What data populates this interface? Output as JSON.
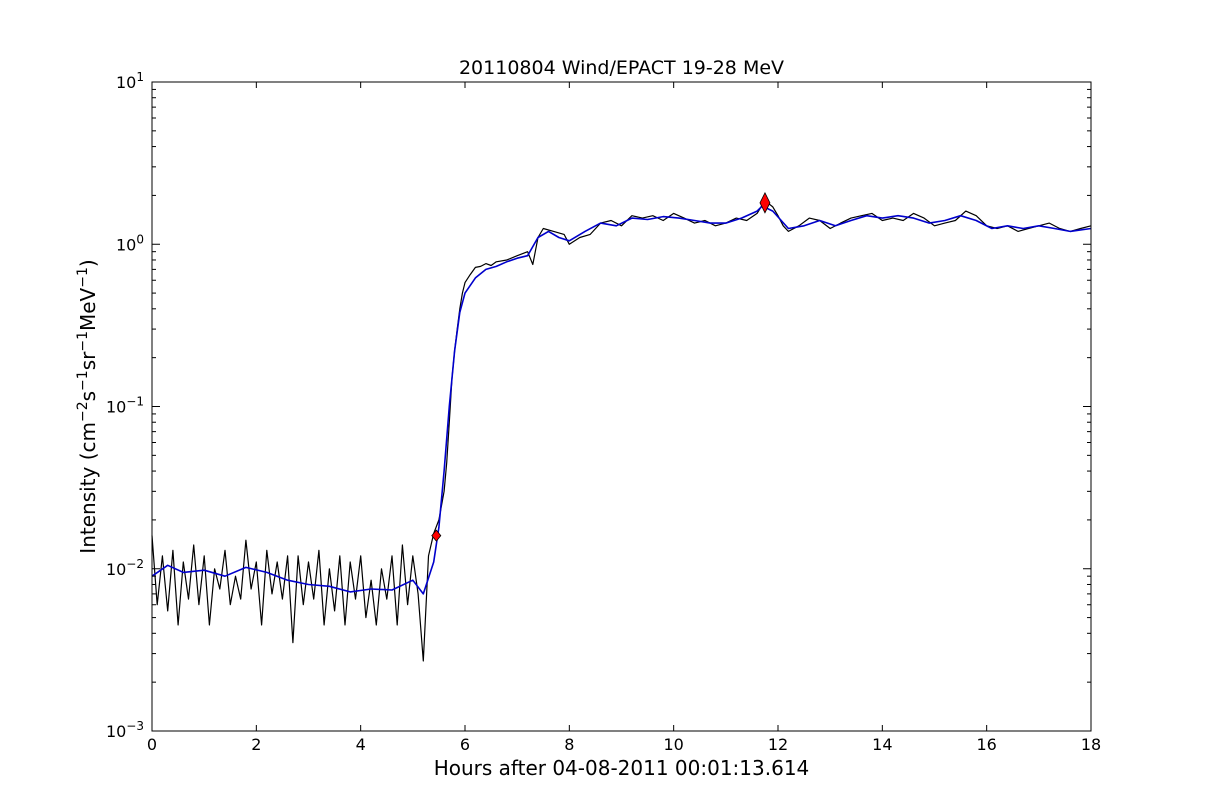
{
  "chart_data": {
    "type": "line",
    "title": "20110804 Wind/EPACT 19-28 MeV",
    "xlabel": "Hours after 04-08-2011 00:01:13.614",
    "ylabel": {
      "prefix": "Intensity (cm",
      "sup1": "−2",
      "mid1": "s",
      "sup2": "−1",
      "mid2": "sr",
      "sup3": "−1",
      "mid3": "MeV",
      "sup4": "−1",
      "suffix": ")"
    },
    "xlim": [
      0,
      18
    ],
    "ylim": [
      0.001,
      10
    ],
    "yscale": "log",
    "grid": false,
    "x_ticks": [
      0,
      2,
      4,
      6,
      8,
      10,
      12,
      14,
      16,
      18
    ],
    "y_ticks": [
      {
        "value": 0.001,
        "base": "10",
        "exp": "−3"
      },
      {
        "value": 0.01,
        "base": "10",
        "exp": "−2"
      },
      {
        "value": 0.1,
        "base": "10",
        "exp": "−1"
      },
      {
        "value": 1,
        "base": "10",
        "exp": "0"
      },
      {
        "value": 10,
        "base": "10",
        "exp": "1"
      }
    ],
    "series": [
      {
        "color": "#000000",
        "style": "noisy",
        "x": [
          0,
          0.1,
          0.2,
          0.3,
          0.4,
          0.5,
          0.6,
          0.7,
          0.8,
          0.9,
          1.0,
          1.1,
          1.2,
          1.3,
          1.4,
          1.5,
          1.6,
          1.7,
          1.8,
          1.9,
          2.0,
          2.1,
          2.2,
          2.3,
          2.4,
          2.5,
          2.6,
          2.7,
          2.8,
          2.9,
          3.0,
          3.1,
          3.2,
          3.3,
          3.4,
          3.5,
          3.6,
          3.7,
          3.8,
          3.9,
          4.0,
          4.1,
          4.2,
          4.3,
          4.4,
          4.5,
          4.6,
          4.7,
          4.8,
          4.9,
          5.0,
          5.1,
          5.2,
          5.3,
          5.4,
          5.5,
          5.6,
          5.65,
          5.7,
          5.75,
          5.8,
          5.85,
          5.9,
          5.95,
          6.0,
          6.1,
          6.2,
          6.3,
          6.4,
          6.5,
          6.6,
          6.8,
          7.0,
          7.2,
          7.3,
          7.4,
          7.5,
          7.7,
          7.9,
          8.0,
          8.2,
          8.4,
          8.6,
          8.8,
          9.0,
          9.2,
          9.4,
          9.6,
          9.8,
          10.0,
          10.2,
          10.4,
          10.6,
          10.8,
          11.0,
          11.2,
          11.4,
          11.6,
          11.7,
          11.8,
          11.9,
          12.0,
          12.1,
          12.2,
          12.4,
          12.6,
          12.8,
          13.0,
          13.2,
          13.4,
          13.6,
          13.8,
          14.0,
          14.2,
          14.4,
          14.6,
          14.8,
          15.0,
          15.2,
          15.4,
          15.6,
          15.8,
          16.0,
          16.2,
          16.4,
          16.6,
          16.8,
          17.0,
          17.2,
          17.4,
          17.6,
          17.8,
          18.0
        ],
        "y": [
          0.016,
          0.006,
          0.012,
          0.0055,
          0.013,
          0.0045,
          0.011,
          0.0065,
          0.014,
          0.006,
          0.012,
          0.0045,
          0.01,
          0.0075,
          0.013,
          0.006,
          0.009,
          0.0065,
          0.015,
          0.0075,
          0.011,
          0.0045,
          0.013,
          0.007,
          0.011,
          0.0065,
          0.012,
          0.0035,
          0.012,
          0.006,
          0.011,
          0.0065,
          0.013,
          0.0045,
          0.01,
          0.0055,
          0.012,
          0.0045,
          0.011,
          0.0065,
          0.012,
          0.005,
          0.0085,
          0.0045,
          0.01,
          0.0065,
          0.012,
          0.0045,
          0.014,
          0.006,
          0.012,
          0.007,
          0.0027,
          0.012,
          0.0165,
          0.02,
          0.03,
          0.045,
          0.08,
          0.15,
          0.22,
          0.3,
          0.4,
          0.5,
          0.58,
          0.65,
          0.72,
          0.73,
          0.76,
          0.74,
          0.78,
          0.8,
          0.85,
          0.9,
          0.75,
          1.1,
          1.25,
          1.2,
          1.15,
          1.0,
          1.1,
          1.15,
          1.35,
          1.4,
          1.3,
          1.5,
          1.45,
          1.5,
          1.4,
          1.55,
          1.45,
          1.35,
          1.4,
          1.3,
          1.35,
          1.45,
          1.4,
          1.55,
          1.75,
          1.8,
          1.7,
          1.5,
          1.3,
          1.2,
          1.3,
          1.45,
          1.4,
          1.25,
          1.35,
          1.45,
          1.5,
          1.55,
          1.4,
          1.45,
          1.4,
          1.55,
          1.45,
          1.3,
          1.35,
          1.4,
          1.6,
          1.5,
          1.3,
          1.25,
          1.3,
          1.2,
          1.25,
          1.3,
          1.35,
          1.25,
          1.2,
          1.25,
          1.3
        ]
      },
      {
        "color": "#0000cc",
        "style": "smooth",
        "x": [
          0,
          0.3,
          0.6,
          1.0,
          1.4,
          1.8,
          2.2,
          2.6,
          3.0,
          3.4,
          3.8,
          4.2,
          4.6,
          5.0,
          5.2,
          5.4,
          5.5,
          5.6,
          5.7,
          5.8,
          5.9,
          6.0,
          6.2,
          6.4,
          6.6,
          6.8,
          7.0,
          7.2,
          7.4,
          7.6,
          7.8,
          8.0,
          8.3,
          8.6,
          8.9,
          9.2,
          9.5,
          9.8,
          10.1,
          10.4,
          10.7,
          11.0,
          11.3,
          11.6,
          11.7,
          11.9,
          12.2,
          12.5,
          12.8,
          13.1,
          13.4,
          13.7,
          14.0,
          14.3,
          14.6,
          14.9,
          15.2,
          15.5,
          15.8,
          16.1,
          16.4,
          16.7,
          17.0,
          17.3,
          17.6,
          18.0
        ],
        "y": [
          0.009,
          0.0105,
          0.0095,
          0.0098,
          0.009,
          0.0102,
          0.0095,
          0.0085,
          0.008,
          0.0078,
          0.0072,
          0.0075,
          0.0074,
          0.0085,
          0.007,
          0.011,
          0.018,
          0.04,
          0.1,
          0.22,
          0.38,
          0.5,
          0.62,
          0.7,
          0.73,
          0.78,
          0.82,
          0.85,
          1.1,
          1.2,
          1.1,
          1.05,
          1.2,
          1.35,
          1.3,
          1.45,
          1.42,
          1.48,
          1.45,
          1.4,
          1.35,
          1.35,
          1.45,
          1.6,
          1.72,
          1.6,
          1.25,
          1.3,
          1.4,
          1.3,
          1.4,
          1.5,
          1.45,
          1.5,
          1.45,
          1.35,
          1.4,
          1.5,
          1.4,
          1.25,
          1.3,
          1.25,
          1.3,
          1.25,
          1.2,
          1.25
        ]
      }
    ],
    "markers": [
      {
        "x": 5.45,
        "y": 0.016,
        "color": "#ff0000",
        "size": "small"
      },
      {
        "x": 11.75,
        "y": 1.8,
        "color": "#ff0000",
        "size": "large"
      }
    ]
  }
}
